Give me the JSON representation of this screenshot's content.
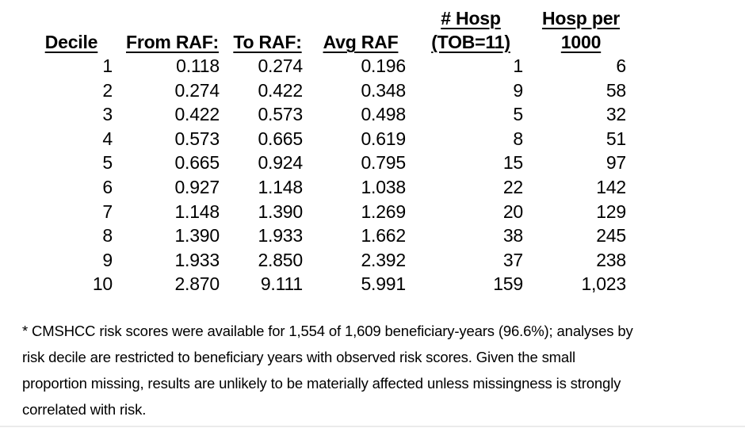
{
  "table": {
    "columns": [
      {
        "line1": "",
        "line2": "Decile"
      },
      {
        "line1": "",
        "line2": "From RAF:"
      },
      {
        "line1": "",
        "line2": "To RAF:"
      },
      {
        "line1": "",
        "line2": "Avg RAF"
      },
      {
        "line1": "# Hosp",
        "line2": "(TOB=11)"
      },
      {
        "line1": "Hosp per",
        "line2": "1000"
      }
    ],
    "rows": [
      [
        "1",
        "0.118",
        "0.274",
        "0.196",
        "1",
        "6"
      ],
      [
        "2",
        "0.274",
        "0.422",
        "0.348",
        "9",
        "58"
      ],
      [
        "3",
        "0.422",
        "0.573",
        "0.498",
        "5",
        "32"
      ],
      [
        "4",
        "0.573",
        "0.665",
        "0.619",
        "8",
        "51"
      ],
      [
        "5",
        "0.665",
        "0.924",
        "0.795",
        "15",
        "97"
      ],
      [
        "6",
        "0.927",
        "1.148",
        "1.038",
        "22",
        "142"
      ],
      [
        "7",
        "1.148",
        "1.390",
        "1.269",
        "20",
        "129"
      ],
      [
        "8",
        "1.390",
        "1.933",
        "1.662",
        "38",
        "245"
      ],
      [
        "9",
        "1.933",
        "2.850",
        "2.392",
        "37",
        "238"
      ],
      [
        "10",
        "2.870",
        "9.111",
        "5.991",
        "159",
        "1,023"
      ]
    ]
  },
  "footnote": {
    "lines": [
      "* CMSHCC risk scores were available for 1,554 of 1,609 beneficiary-years (96.6%); analyses by",
      "risk decile are restricted to beneficiary years with observed risk scores. Given the small",
      "proportion missing, results are unlikely to be materially affected unless missingness is strongly",
      "correlated with risk."
    ],
    "text": "* CMSHCC risk scores were available for 1,554 of 1,609 beneficiary-years (96.6%); analyses by risk decile are restricted to beneficiary years with observed risk scores. Given the small proportion missing, results are unlikely to be materially affected unless missingness is strongly correlated with risk."
  },
  "colors": {
    "text": "#000000",
    "background": "#ffffff",
    "divider": "#ebebeb"
  }
}
